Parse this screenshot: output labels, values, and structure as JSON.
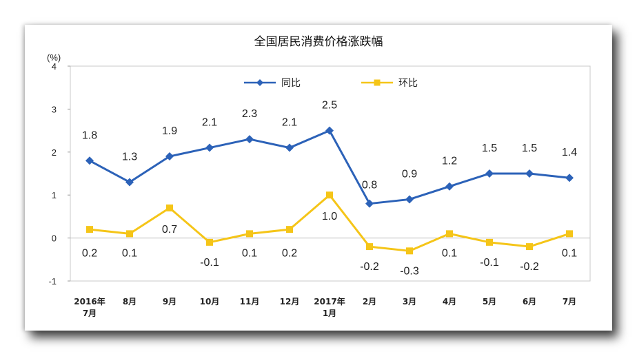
{
  "chart_data": {
    "type": "line",
    "title": "全国居民消费价格涨跌幅",
    "ylabel": "(%)",
    "xlabel": "",
    "ylim": [
      -1,
      4
    ],
    "yticks": [
      4,
      3,
      2,
      1,
      0,
      -1
    ],
    "categories": [
      "2016年\n7月",
      "8月",
      "9月",
      "10月",
      "11月",
      "12月",
      "2017年\n1月",
      "2月",
      "3月",
      "4月",
      "5月",
      "6月",
      "7月"
    ],
    "series": [
      {
        "name": "同比",
        "color": "#2c62b8",
        "marker": "diamond",
        "values": [
          1.8,
          1.3,
          1.9,
          2.1,
          2.3,
          2.1,
          2.5,
          0.8,
          0.9,
          1.2,
          1.5,
          1.5,
          1.4
        ],
        "labels": [
          "1.8",
          "1.3",
          "1.9",
          "2.1",
          "2.3",
          "2.1",
          "2.5",
          "0.8",
          "0.9",
          "1.2",
          "1.5",
          "1.5",
          "1.4"
        ]
      },
      {
        "name": "环比",
        "color": "#f5c518",
        "marker": "square",
        "values": [
          0.2,
          0.1,
          0.7,
          -0.1,
          0.1,
          0.2,
          1.0,
          -0.2,
          -0.3,
          0.1,
          -0.1,
          -0.2,
          0.1
        ],
        "labels": [
          "0.2",
          "0.1",
          "0.7",
          "-0.1",
          "0.1",
          "0.2",
          "1.0",
          "-0.2",
          "-0.3",
          "0.1",
          "-0.1",
          "-0.2",
          "0.1"
        ]
      }
    ],
    "legend_position": "top-center"
  }
}
